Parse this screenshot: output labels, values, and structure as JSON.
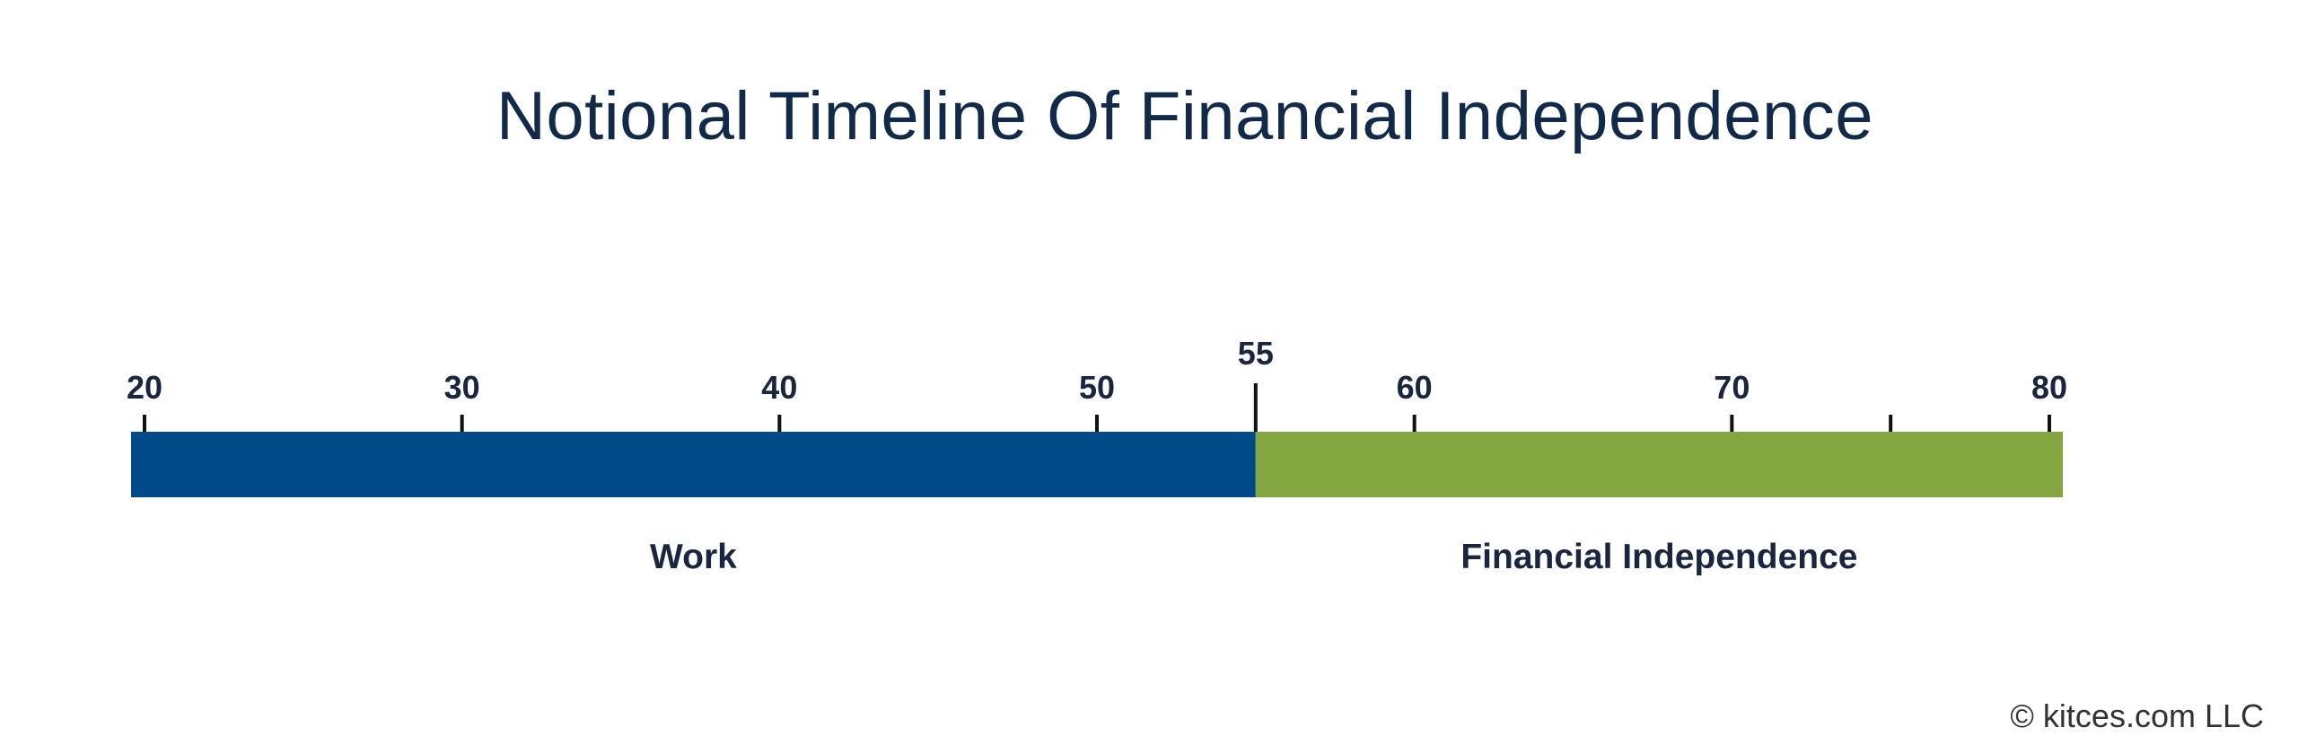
{
  "title": "Notional Timeline Of Financial Independence",
  "copyright": "© kitces.com LLC",
  "colors": {
    "title": "#112a4a",
    "work": "#004a87",
    "independence": "#84a640",
    "tick": "#111111",
    "text": "#1a2540"
  },
  "chart_data": {
    "type": "timeline",
    "axis": {
      "min": 20,
      "max": 80
    },
    "ticks": [
      {
        "value": 20,
        "label": "20"
      },
      {
        "value": 30,
        "label": "30"
      },
      {
        "value": 40,
        "label": "40"
      },
      {
        "value": 50,
        "label": "50"
      },
      {
        "value": 55,
        "label": "55",
        "major": true
      },
      {
        "value": 60,
        "label": "60"
      },
      {
        "value": 70,
        "label": "70"
      },
      {
        "value": 75,
        "label": ""
      },
      {
        "value": 80,
        "label": "80"
      }
    ],
    "segments": [
      {
        "label": "Work",
        "start": 20,
        "end": 55,
        "color": "#004a87"
      },
      {
        "label": "Financial Independence",
        "start": 55,
        "end": 80,
        "color": "#84a640"
      }
    ]
  }
}
